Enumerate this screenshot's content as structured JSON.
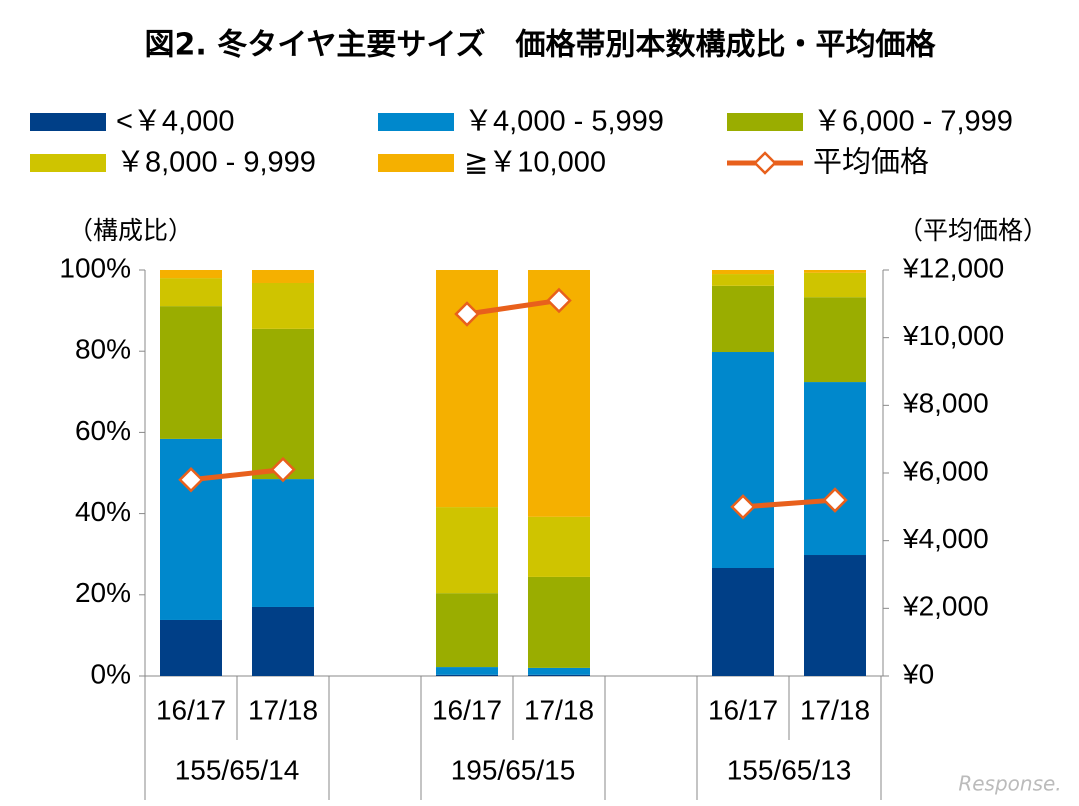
{
  "chart_data": {
    "type": "bar",
    "stacked": true,
    "title": "図2. 冬タイヤ主要サイズ　価格帯別本数構成比・平均価格",
    "y_label": "（構成比）",
    "y2_label": "（平均価格）",
    "categories": [
      "16/17",
      "17/18",
      null,
      "16/17",
      "17/18",
      null,
      "16/17",
      "17/18"
    ],
    "groups": [
      "155/65/14",
      "195/65/15",
      "155/65/13"
    ],
    "series": [
      {
        "name": "<￥4,000",
        "color": "#003f87",
        "values": [
          13.8,
          17.0,
          null,
          0.3,
          0.3,
          null,
          26.6,
          29.8
        ]
      },
      {
        "name": "￥4,000 - 5,999",
        "color": "#0088cc",
        "values": [
          44.6,
          31.5,
          null,
          1.9,
          1.7,
          null,
          53.2,
          42.6
        ]
      },
      {
        "name": "￥6,000 - 7,999",
        "color": "#9aad00",
        "values": [
          32.7,
          37.0,
          null,
          18.2,
          22.4,
          null,
          16.3,
          20.9
        ]
      },
      {
        "name": "￥8,000 - 9,999",
        "color": "#cfc400",
        "values": [
          6.9,
          11.3,
          null,
          21.2,
          14.8,
          null,
          2.9,
          6.0
        ]
      },
      {
        "name": "≧￥10,000",
        "color": "#f5b000",
        "values": [
          2.0,
          3.2,
          null,
          58.4,
          60.8,
          null,
          1.0,
          0.7
        ]
      },
      {
        "name": "平均価格",
        "color": "#e8601c",
        "type": "line",
        "axis": "y2",
        "values": [
          5800,
          6100,
          null,
          10700,
          11100,
          null,
          5000,
          5200
        ]
      }
    ],
    "ylim": [
      0,
      100
    ],
    "yticks": [
      {
        "value": 0,
        "label": "0%"
      },
      {
        "value": 20,
        "label": "20%"
      },
      {
        "value": 40,
        "label": "40%"
      },
      {
        "value": 60,
        "label": "60%"
      },
      {
        "value": 80,
        "label": "80%"
      },
      {
        "value": 100,
        "label": "100%"
      }
    ],
    "y2lim": [
      0,
      12000
    ],
    "y2ticks": [
      {
        "value": 0,
        "label": "¥0"
      },
      {
        "value": 2000,
        "label": "¥2,000"
      },
      {
        "value": 4000,
        "label": "¥4,000"
      },
      {
        "value": 6000,
        "label": "¥6,000"
      },
      {
        "value": 8000,
        "label": "¥8,000"
      },
      {
        "value": 10000,
        "label": "¥10,000"
      },
      {
        "value": 12000,
        "label": "¥12,000"
      }
    ],
    "watermark": "Response."
  }
}
